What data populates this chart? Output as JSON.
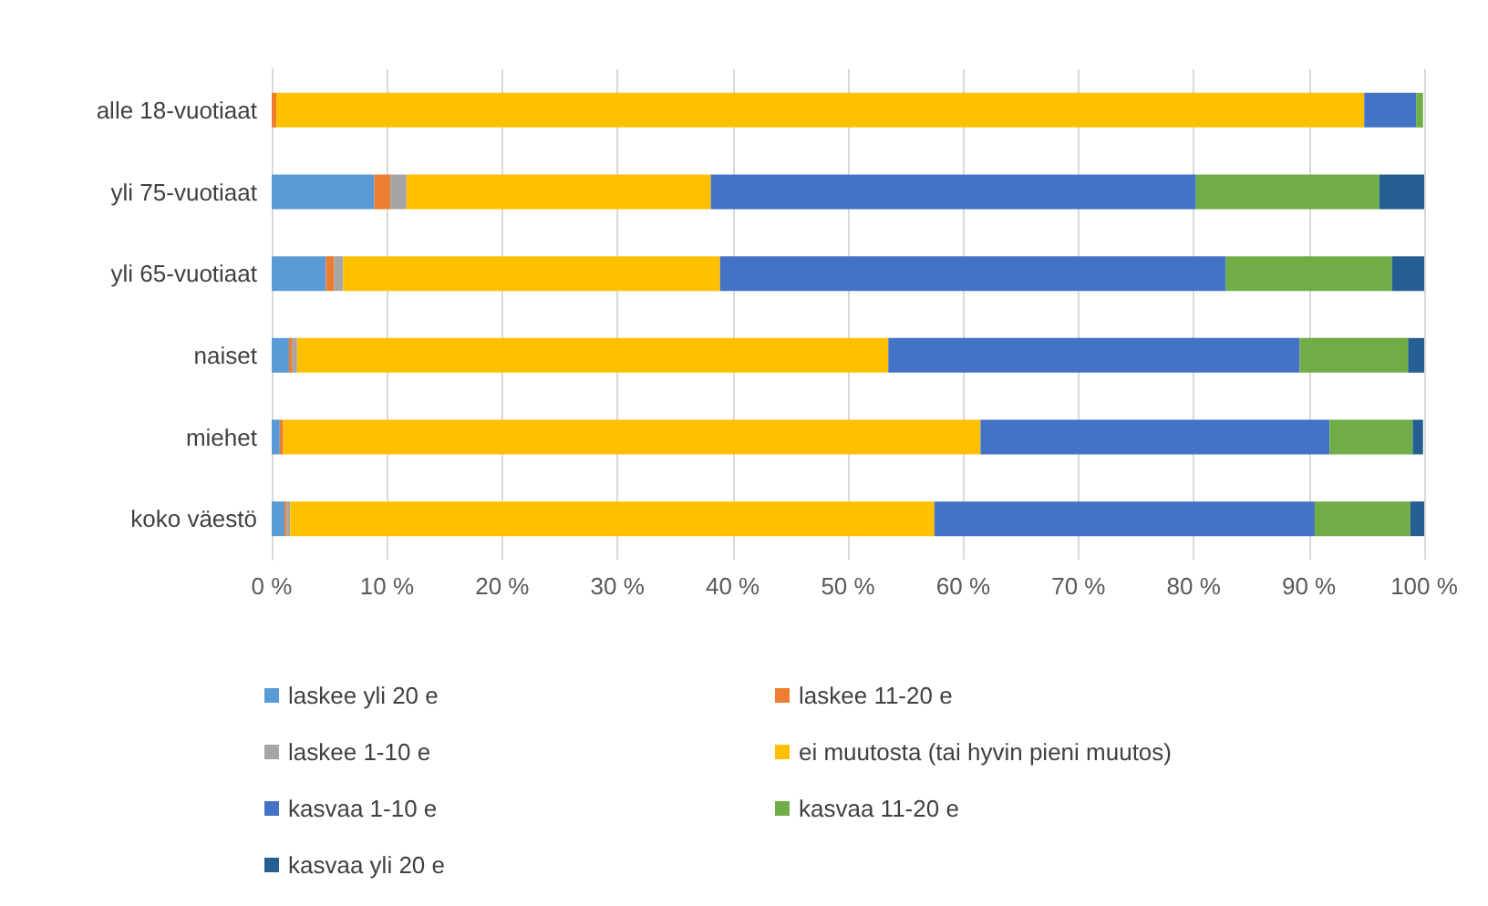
{
  "chart_data": {
    "type": "bar",
    "orientation": "horizontal",
    "stacked": true,
    "categories": [
      "alle 18-vuotiaat",
      "yli 75-vuotiaat",
      "yli 65-vuotiaat",
      "naiset",
      "miehet",
      "koko väestö"
    ],
    "series": [
      {
        "name": "laskee yli 20 e",
        "color": "#5b9bd5",
        "values": [
          0,
          8.9,
          4.7,
          1.5,
          0.7,
          1.1
        ]
      },
      {
        "name": "laskee 11-20 e",
        "color": "#ed7d31",
        "values": [
          0.4,
          1.4,
          0.7,
          0.3,
          0.3,
          0.2
        ]
      },
      {
        "name": "laskee 1-10 e",
        "color": "#a5a5a5",
        "values": [
          null,
          1.4,
          0.8,
          0.4,
          null,
          0.3
        ]
      },
      {
        "name": "ei muutosta (tai hyvin pieni muutos)",
        "color": "#ffc000",
        "values": [
          94.4,
          26.4,
          32.7,
          51.3,
          60.5,
          55.9
        ]
      },
      {
        "name": "kasvaa 1-10 e",
        "color": "#4472c4",
        "values": [
          4.5,
          42.1,
          43.9,
          35.7,
          30.3,
          33.0
        ]
      },
      {
        "name": "kasvaa 11-20 e",
        "color": "#70ad47",
        "values": [
          0.6,
          15.9,
          14.4,
          9.4,
          7.2,
          8.3
        ]
      },
      {
        "name": "kasvaa yli 20 e",
        "color": "#255e91",
        "values": [
          0,
          3.9,
          2.8,
          1.4,
          0.9,
          1.2
        ]
      }
    ],
    "xlim": [
      0,
      100
    ],
    "xticks": [
      {
        "value": 0,
        "label": "0 %"
      },
      {
        "value": 10,
        "label": "10 %"
      },
      {
        "value": 20,
        "label": "20 %"
      },
      {
        "value": 30,
        "label": "30 %"
      },
      {
        "value": 40,
        "label": "40 %"
      },
      {
        "value": 50,
        "label": "50 %"
      },
      {
        "value": 60,
        "label": "60 %"
      },
      {
        "value": 70,
        "label": "70 %"
      },
      {
        "value": 80,
        "label": "80 %"
      },
      {
        "value": 90,
        "label": "90 %"
      },
      {
        "value": 100,
        "label": "100 %"
      }
    ],
    "grid": "x",
    "legend": "bottom"
  }
}
